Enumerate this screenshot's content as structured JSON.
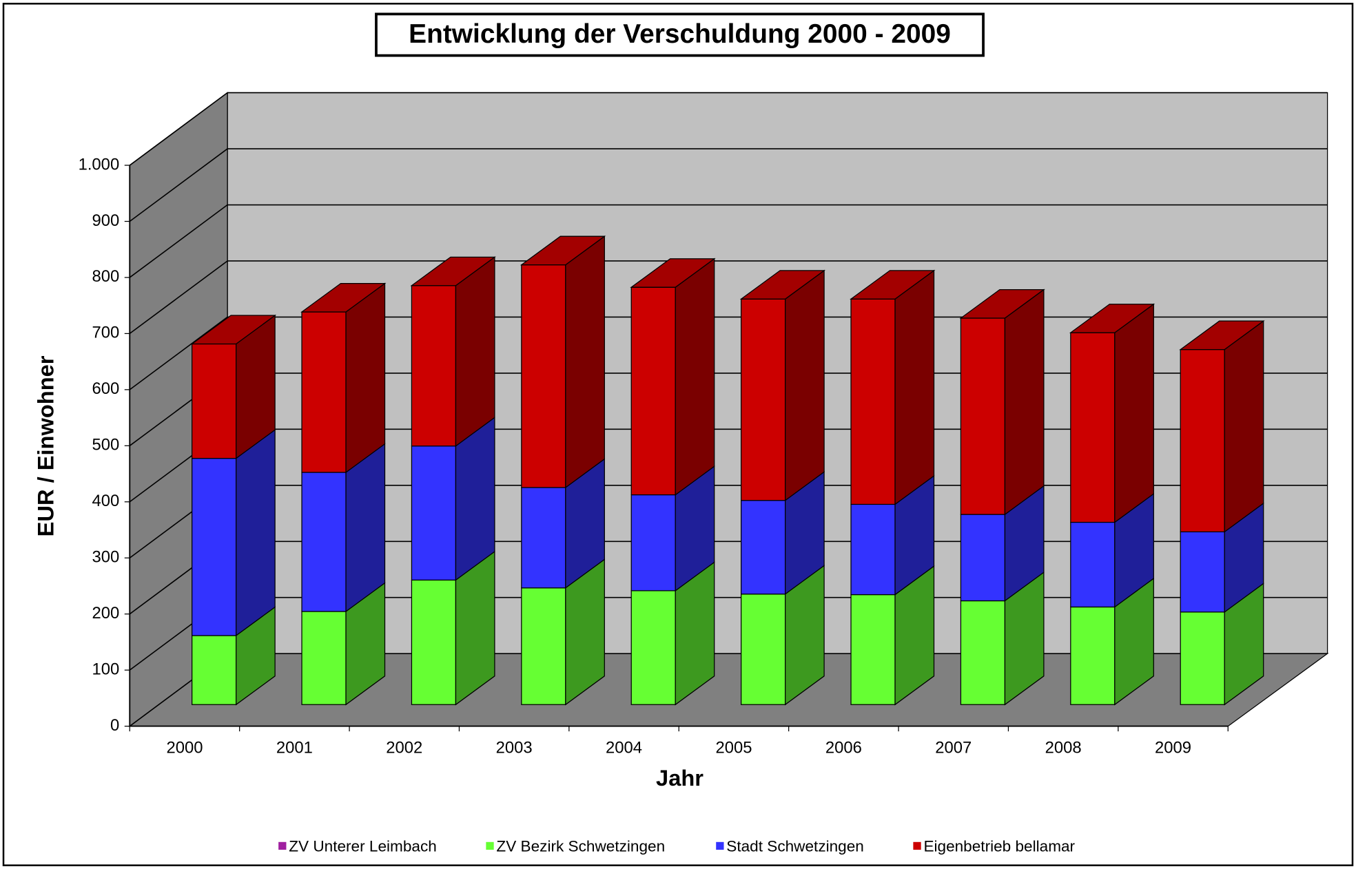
{
  "chart_data": {
    "type": "bar3d_stacked",
    "title": "Entwicklung der Verschuldung 2000 - 2009",
    "x_label": "Jahr",
    "y_label": "EUR / Einwohner",
    "categories": [
      "2000",
      "2001",
      "2002",
      "2003",
      "2004",
      "2005",
      "2006",
      "2007",
      "2008",
      "2009"
    ],
    "series": [
      {
        "name": "ZV  Unterer Leimbach",
        "color": "#a020a0",
        "values": [
          0,
          0,
          0,
          0,
          0,
          0,
          0,
          0,
          0,
          0
        ]
      },
      {
        "name": "ZV  Bezirk Schwetzingen",
        "color": "#66ff33",
        "values": [
          123,
          166,
          222,
          208,
          203,
          197,
          196,
          185,
          174,
          165
        ]
      },
      {
        "name": "Stadt  Schwetzingen",
        "color": "#3333ff",
        "values": [
          316,
          248,
          239,
          179,
          171,
          167,
          161,
          154,
          151,
          143
        ]
      },
      {
        "name": "Eigenbetrieb bellamar",
        "color": "#cc0000",
        "values": [
          204,
          286,
          286,
          397,
          370,
          359,
          366,
          350,
          338,
          325
        ]
      }
    ],
    "ylim": [
      0,
      1000
    ],
    "yticks": [
      0,
      100,
      200,
      300,
      400,
      500,
      600,
      700,
      800,
      900,
      {
        "value": 1000,
        "label": "1.000"
      }
    ],
    "grid": true,
    "legend": "bottom"
  }
}
